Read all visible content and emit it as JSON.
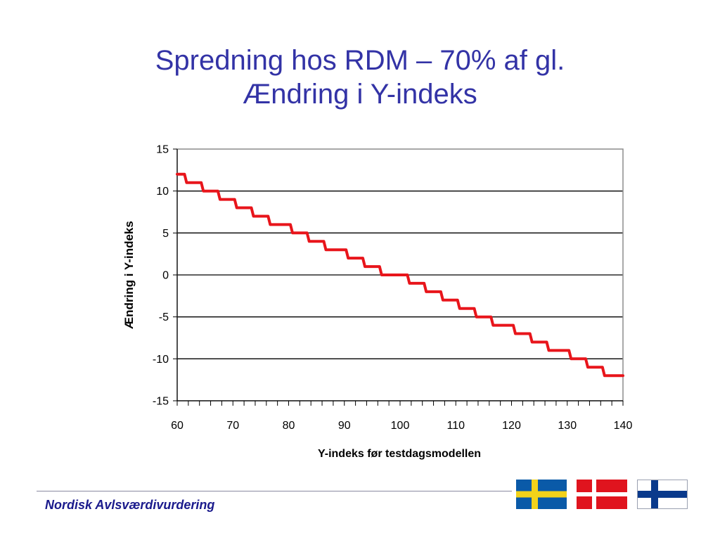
{
  "slide": {
    "title_line1": "Spredning hos RDM – 70% af gl.",
    "title_line2": "Ændring i Y-indeks",
    "footer": "Nordisk Avlsværdivurdering"
  },
  "flags": [
    {
      "name": "sweden",
      "field": "#0a5aa8",
      "cross": "#f2d21a"
    },
    {
      "name": "denmark",
      "field": "#e0141e",
      "cross": "#ffffff"
    },
    {
      "name": "finland",
      "field": "#ffffff",
      "cross": "#0a3a8c"
    }
  ],
  "chart_data": {
    "type": "line",
    "title": "",
    "xlabel": "Y-indeks før testdagsmodellen",
    "ylabel": "Ændring i Y-indeks",
    "xlim": [
      60,
      140
    ],
    "ylim": [
      -15,
      15
    ],
    "x_ticks": [
      60,
      70,
      80,
      90,
      100,
      110,
      120,
      130,
      140
    ],
    "y_ticks": [
      15,
      10,
      5,
      0,
      -5,
      -10,
      -15
    ],
    "grid": "horizontal",
    "legend": "none",
    "line_color": "#e8151b",
    "series": [
      {
        "x": [
          60,
          61,
          62,
          63,
          64,
          65,
          66,
          67,
          68,
          69,
          70,
          71,
          72,
          73,
          74,
          75,
          76,
          77,
          78,
          79,
          80,
          81,
          82,
          83,
          84,
          85,
          86,
          87,
          88,
          89,
          90,
          91,
          92,
          93,
          94,
          95,
          96,
          97,
          98,
          99,
          100,
          101,
          102,
          103,
          104,
          105,
          106,
          107,
          108,
          109,
          110,
          111,
          112,
          113,
          114,
          115,
          116,
          117,
          118,
          119,
          120,
          121,
          122,
          123,
          124,
          125,
          126,
          127,
          128,
          129,
          130,
          131,
          132,
          133,
          134,
          135,
          136,
          137,
          138,
          139,
          140
        ],
        "values": [
          12,
          12,
          11,
          11,
          11,
          10,
          10,
          10,
          9,
          9,
          9,
          8,
          8,
          8,
          7,
          7,
          7,
          6,
          6,
          6,
          6,
          5,
          5,
          5,
          4,
          4,
          4,
          3,
          3,
          3,
          3,
          2,
          2,
          2,
          1,
          1,
          1,
          0,
          0,
          0,
          0,
          0,
          -1,
          -1,
          -1,
          -2,
          -2,
          -2,
          -3,
          -3,
          -3,
          -4,
          -4,
          -4,
          -5,
          -5,
          -5,
          -6,
          -6,
          -6,
          -6,
          -7,
          -7,
          -7,
          -8,
          -8,
          -8,
          -9,
          -9,
          -9,
          -9,
          -10,
          -10,
          -10,
          -11,
          -11,
          -11,
          -12,
          -12,
          -12,
          -12
        ]
      }
    ]
  }
}
